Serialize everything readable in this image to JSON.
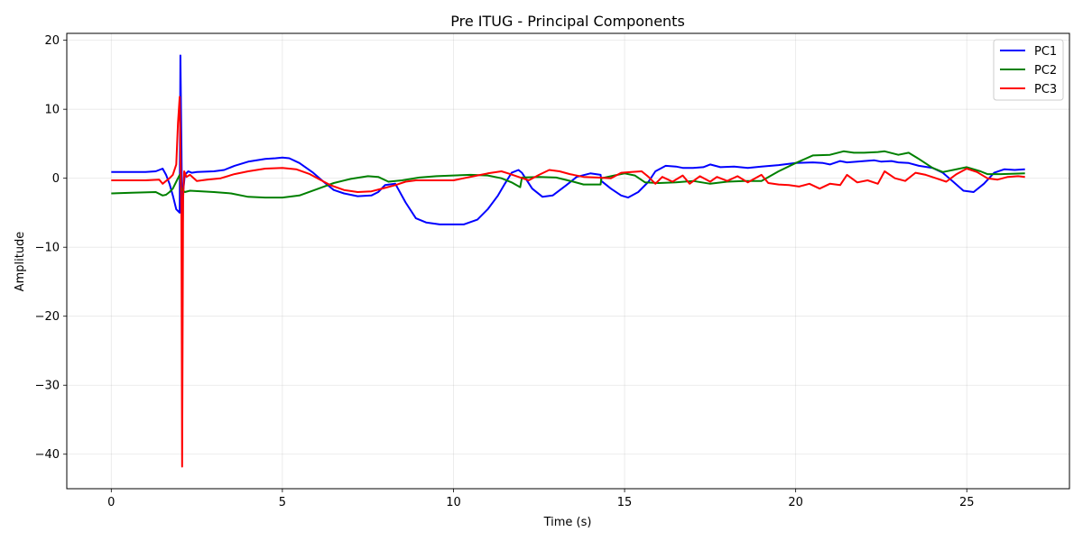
{
  "chart_data": {
    "type": "line",
    "title": "Pre ITUG - Principal Components",
    "xlabel": "Time (s)",
    "ylabel": "Amplitude",
    "xlim": [
      -1.3,
      28.0
    ],
    "ylim": [
      -45,
      21
    ],
    "xticks": [
      0,
      5,
      10,
      15,
      20,
      25
    ],
    "xtick_labels": [
      "0",
      "5",
      "10",
      "15",
      "20",
      "25"
    ],
    "yticks": [
      20,
      10,
      0,
      -10,
      -20,
      -30,
      -40
    ],
    "ytick_labels": [
      "20",
      "10",
      "0",
      "−10",
      "−20",
      "−30",
      "−40"
    ],
    "grid": true,
    "legend_position": "top-right",
    "series": [
      {
        "name": "PC1",
        "color": "#0000ff",
        "x": [
          0,
          1.0,
          1.3,
          1.5,
          1.6,
          1.7,
          1.8,
          1.9,
          2.0,
          2.02,
          2.05,
          2.08,
          2.1,
          2.15,
          2.25,
          2.35,
          2.5,
          3.0,
          3.3,
          3.6,
          4.0,
          4.5,
          4.8,
          5.0,
          5.2,
          5.5,
          5.9,
          6.2,
          6.5,
          6.8,
          7.2,
          7.6,
          7.8,
          8.0,
          8.3,
          8.6,
          8.9,
          9.2,
          9.6,
          10.0,
          10.3,
          10.7,
          11.0,
          11.3,
          11.5,
          11.7,
          11.9,
          12.0,
          12.3,
          12.6,
          12.9,
          13.3,
          13.6,
          14.0,
          14.3,
          14.32,
          14.6,
          14.9,
          15.1,
          15.4,
          15.7,
          15.9,
          16.2,
          16.5,
          16.7,
          17.0,
          17.3,
          17.5,
          17.8,
          18.2,
          18.6,
          19.0,
          19.5,
          20.0,
          20.5,
          20.8,
          21.0,
          21.3,
          21.5,
          21.8,
          22.0,
          22.3,
          22.5,
          22.8,
          23.0,
          23.3,
          23.6,
          24.0,
          24.3,
          24.6,
          24.9,
          25.2,
          25.5,
          25.8,
          26.1,
          26.4,
          26.7
        ],
        "y": [
          0.9,
          0.9,
          1.0,
          1.4,
          0.5,
          -0.8,
          -2.5,
          -4.5,
          -5.0,
          17.8,
          5.0,
          -10.0,
          -2.0,
          0.5,
          1.0,
          0.8,
          0.9,
          1.0,
          1.2,
          1.8,
          2.4,
          2.8,
          2.9,
          3.0,
          2.9,
          2.2,
          0.8,
          -0.5,
          -1.7,
          -2.2,
          -2.6,
          -2.5,
          -2.0,
          -1.0,
          -0.8,
          -3.5,
          -5.8,
          -6.4,
          -6.7,
          -6.7,
          -6.7,
          -6.0,
          -4.5,
          -2.5,
          -0.8,
          0.8,
          1.2,
          0.8,
          -1.5,
          -2.7,
          -2.5,
          -1.0,
          0.2,
          0.7,
          0.5,
          -0.4,
          -1.5,
          -2.5,
          -2.8,
          -2.0,
          -0.5,
          1.0,
          1.8,
          1.7,
          1.5,
          1.5,
          1.6,
          2.0,
          1.6,
          1.7,
          1.5,
          1.7,
          1.9,
          2.2,
          2.3,
          2.2,
          2.0,
          2.5,
          2.3,
          2.4,
          2.5,
          2.6,
          2.4,
          2.5,
          2.3,
          2.2,
          1.8,
          1.5,
          0.8,
          -0.5,
          -1.8,
          -2.0,
          -0.8,
          0.8,
          1.3,
          1.2,
          1.3
        ]
      },
      {
        "name": "PC2",
        "color": "#008000",
        "x": [
          0,
          0.6,
          1.3,
          1.5,
          1.6,
          1.7,
          1.8,
          1.9,
          2.0,
          2.05,
          2.1,
          2.15,
          2.3,
          3.0,
          3.5,
          4.0,
          4.5,
          5.0,
          5.5,
          6.0,
          6.5,
          7.0,
          7.5,
          7.8,
          8.1,
          8.5,
          9.0,
          9.5,
          10.0,
          10.5,
          11.0,
          11.4,
          11.7,
          11.95,
          12.0,
          12.5,
          13.0,
          13.5,
          13.8,
          14.3,
          14.32,
          14.7,
          15.0,
          15.3,
          15.6,
          16.0,
          16.5,
          17.0,
          17.5,
          18.0,
          18.5,
          19.0,
          19.5,
          20.0,
          20.5,
          21.0,
          21.4,
          21.7,
          22.0,
          22.4,
          22.6,
          23.0,
          23.3,
          23.6,
          24.0,
          24.3,
          24.6,
          25.0,
          25.4,
          25.6,
          26.0,
          26.7
        ],
        "y": [
          -2.2,
          -2.1,
          -2.0,
          -2.5,
          -2.4,
          -2.0,
          -1.5,
          -0.5,
          0.5,
          -1.5,
          -1.8,
          -2.0,
          -1.8,
          -2.0,
          -2.2,
          -2.7,
          -2.8,
          -2.8,
          -2.5,
          -1.6,
          -0.7,
          -0.1,
          0.3,
          0.2,
          -0.5,
          -0.3,
          0.1,
          0.3,
          0.4,
          0.5,
          0.4,
          0.0,
          -0.6,
          -1.3,
          0.1,
          0.2,
          0.1,
          -0.5,
          -0.9,
          -0.9,
          0.0,
          0.4,
          0.7,
          0.4,
          -0.6,
          -0.7,
          -0.6,
          -0.4,
          -0.8,
          -0.5,
          -0.4,
          -0.4,
          1.0,
          2.2,
          3.3,
          3.4,
          3.9,
          3.7,
          3.7,
          3.8,
          3.9,
          3.4,
          3.7,
          2.8,
          1.5,
          0.9,
          1.2,
          1.6,
          1.0,
          0.6,
          0.6,
          0.7
        ]
      },
      {
        "name": "PC3",
        "color": "#ff0000",
        "x": [
          0,
          1.0,
          1.4,
          1.5,
          1.6,
          1.7,
          1.8,
          1.9,
          1.95,
          2.0,
          2.05,
          2.07,
          2.1,
          2.13,
          2.2,
          2.3,
          2.5,
          2.8,
          3.2,
          3.6,
          4.0,
          4.5,
          5.0,
          5.4,
          5.8,
          6.1,
          6.4,
          6.8,
          7.2,
          7.6,
          8.0,
          8.3,
          8.6,
          8.9,
          9.2,
          9.6,
          10.0,
          10.3,
          10.6,
          11.0,
          11.4,
          11.6,
          11.9,
          12.2,
          12.5,
          12.8,
          13.1,
          13.4,
          13.8,
          14.2,
          14.6,
          14.9,
          15.2,
          15.5,
          15.7,
          15.9,
          16.1,
          16.4,
          16.7,
          16.9,
          17.2,
          17.5,
          17.7,
          18.0,
          18.3,
          18.6,
          19.0,
          19.2,
          19.5,
          19.8,
          20.1,
          20.4,
          20.7,
          21.0,
          21.3,
          21.5,
          21.8,
          22.1,
          22.4,
          22.6,
          22.9,
          23.2,
          23.5,
          23.8,
          24.1,
          24.4,
          24.7,
          25.0,
          25.3,
          25.6,
          25.9,
          26.2,
          26.5,
          26.7
        ],
        "y": [
          -0.3,
          -0.3,
          -0.2,
          -0.8,
          -0.4,
          0.0,
          0.5,
          2.0,
          8.0,
          11.8,
          -5.0,
          -41.8,
          -3.0,
          1.0,
          0.2,
          0.5,
          -0.4,
          -0.2,
          0.0,
          0.6,
          1.0,
          1.4,
          1.5,
          1.3,
          0.6,
          -0.2,
          -1.0,
          -1.7,
          -2.0,
          -1.9,
          -1.4,
          -1.0,
          -0.5,
          -0.3,
          -0.3,
          -0.3,
          -0.3,
          0.0,
          0.3,
          0.7,
          1.0,
          0.7,
          0.2,
          -0.3,
          0.5,
          1.2,
          1.0,
          0.6,
          0.2,
          0.1,
          0.0,
          0.8,
          0.9,
          1.0,
          0.2,
          -0.8,
          0.2,
          -0.5,
          0.4,
          -0.8,
          0.3,
          -0.5,
          0.2,
          -0.4,
          0.3,
          -0.6,
          0.5,
          -0.7,
          -0.9,
          -1.0,
          -1.2,
          -0.8,
          -1.5,
          -0.8,
          -1.0,
          0.5,
          -0.6,
          -0.3,
          -0.8,
          1.0,
          0.0,
          -0.4,
          0.8,
          0.5,
          0.0,
          -0.5,
          0.6,
          1.4,
          0.9,
          0.0,
          -0.2,
          0.2,
          0.3,
          0.2
        ]
      }
    ]
  }
}
